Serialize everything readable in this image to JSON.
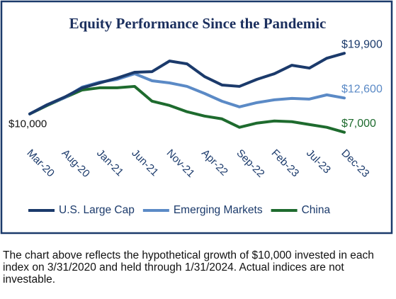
{
  "chart_data": {
    "type": "line",
    "title": "Equity Performance Since the Pandemic",
    "categories": [
      "Mar-20",
      null,
      "Aug-20",
      null,
      "Jan-21",
      null,
      "Jun-21",
      null,
      "Nov-21",
      null,
      "Apr-22",
      null,
      "Sep-22",
      null,
      "Feb-23",
      null,
      "Jul-23",
      null,
      "Dec-23"
    ],
    "series": [
      {
        "name": "U.S. Large Cap",
        "color": "#1b3a6b",
        "end_label": "$19,900",
        "values": [
          10000,
          11500,
          12750,
          14250,
          15050,
          15850,
          16800,
          16900,
          18630,
          18170,
          16100,
          14720,
          14490,
          15640,
          16560,
          17940,
          17480,
          19090,
          19900
        ]
      },
      {
        "name": "Emerging Markets",
        "color": "#5b8ac6",
        "end_label": "$12,600",
        "values": [
          10000,
          11500,
          12650,
          14370,
          15180,
          15640,
          16560,
          15410,
          15060,
          14490,
          13340,
          12070,
          11150,
          11840,
          12300,
          12530,
          12420,
          13110,
          12600
        ]
      },
      {
        "name": "China",
        "color": "#1e6b2e",
        "end_label": "$7,000",
        "values": [
          10000,
          11380,
          12650,
          13910,
          14260,
          14260,
          14490,
          12070,
          11380,
          10350,
          9650,
          9190,
          7810,
          8500,
          8850,
          8730,
          8270,
          7810,
          7000
        ]
      }
    ],
    "start_label": "$10,000",
    "ylim": [
      5000,
      22000
    ],
    "legend": "bottom",
    "caption": "The chart above reflects the hypothetical growth of $10,000 invested in each index on 3/31/2020 and held through 1/31/2024. Actual indices are not investable."
  }
}
